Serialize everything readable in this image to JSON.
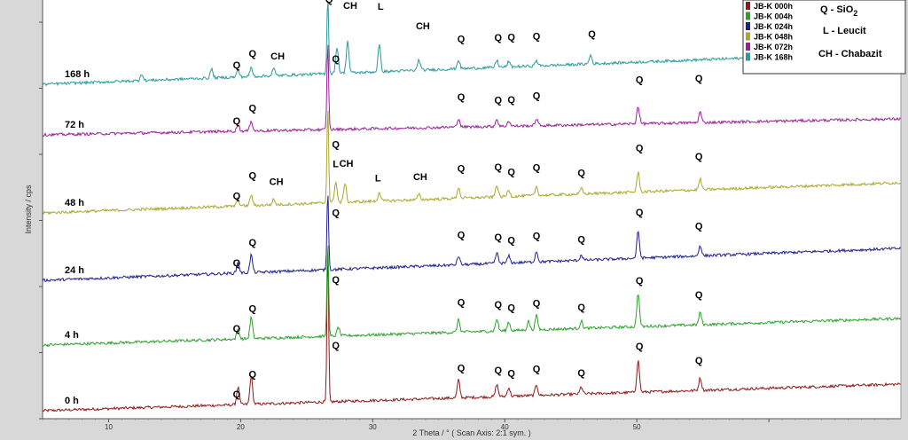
{
  "chart_data": {
    "type": "line",
    "xlabel": "2 Theta / °  ( Scan Axis: 2:1 sym. )",
    "ylabel": "Intensity / cps",
    "xlim": [
      5,
      70
    ],
    "x_ticks": [
      10,
      20,
      30,
      40,
      50,
      60
    ],
    "x_tick_labels": [
      "10",
      "20",
      "30",
      "40",
      "50",
      ""
    ],
    "grid": false,
    "legend_position": "top-right",
    "series": [
      {
        "name": "JB-K 000h",
        "trace_label": "0 h",
        "color": "#8b1a1a",
        "peaks": [
          [
            19.8,
            20
          ],
          [
            20.8,
            32
          ],
          [
            26.6,
            175
          ],
          [
            36.5,
            20
          ],
          [
            39.4,
            14
          ],
          [
            40.3,
            10
          ],
          [
            42.4,
            12
          ],
          [
            45.8,
            8
          ],
          [
            50.1,
            36
          ],
          [
            54.8,
            14
          ]
        ],
        "annotations": [
          {
            "text": "Q",
            "x": 19.7,
            "dy": 8
          },
          {
            "text": "Q",
            "x": 20.9,
            "dy": 30
          },
          {
            "text": "Q",
            "x": 27.2,
            "dy": 60
          },
          {
            "text": "Q",
            "x": 36.7,
            "dy": 30
          },
          {
            "text": "Q",
            "x": 39.5,
            "dy": 26
          },
          {
            "text": "Q",
            "x": 40.5,
            "dy": 22
          },
          {
            "text": "Q",
            "x": 42.4,
            "dy": 26
          },
          {
            "text": "Q",
            "x": 45.8,
            "dy": 20
          },
          {
            "text": "Q",
            "x": 50.2,
            "dy": 48
          },
          {
            "text": "Q",
            "x": 54.7,
            "dy": 30
          }
        ]
      },
      {
        "name": "JB-K 004h",
        "trace_label": "4 h",
        "color": "#2ca02c",
        "peaks": [
          [
            19.8,
            12
          ],
          [
            20.8,
            24
          ],
          [
            26.6,
            110
          ],
          [
            27.4,
            10
          ],
          [
            36.5,
            14
          ],
          [
            39.4,
            14
          ],
          [
            40.3,
            10
          ],
          [
            41.8,
            10
          ],
          [
            42.4,
            16
          ],
          [
            45.8,
            8
          ],
          [
            50.1,
            38
          ],
          [
            54.8,
            14
          ]
        ],
        "annotations": [
          {
            "text": "Q",
            "x": 19.7,
            "dy": 8
          },
          {
            "text": "Q",
            "x": 20.9,
            "dy": 30
          },
          {
            "text": "Q",
            "x": 27.2,
            "dy": 60
          },
          {
            "text": "Q",
            "x": 36.7,
            "dy": 30
          },
          {
            "text": "Q",
            "x": 39.5,
            "dy": 26
          },
          {
            "text": "Q",
            "x": 40.5,
            "dy": 22
          },
          {
            "text": "Q",
            "x": 42.4,
            "dy": 26
          },
          {
            "text": "Q",
            "x": 45.8,
            "dy": 20
          },
          {
            "text": "Q",
            "x": 50.2,
            "dy": 48
          },
          {
            "text": "Q",
            "x": 54.7,
            "dy": 30
          }
        ]
      },
      {
        "name": "JB-K 024h",
        "trace_label": "24 h",
        "color": "#1f1f8c",
        "peaks": [
          [
            19.8,
            12
          ],
          [
            20.8,
            20
          ],
          [
            26.6,
            90
          ],
          [
            36.5,
            10
          ],
          [
            39.4,
            12
          ],
          [
            40.3,
            8
          ],
          [
            42.4,
            12
          ],
          [
            45.8,
            6
          ],
          [
            50.1,
            30
          ],
          [
            54.8,
            12
          ]
        ],
        "annotations": [
          {
            "text": "Q",
            "x": 19.7,
            "dy": 8
          },
          {
            "text": "Q",
            "x": 20.9,
            "dy": 30
          },
          {
            "text": "Q",
            "x": 27.2,
            "dy": 60
          },
          {
            "text": "Q",
            "x": 36.7,
            "dy": 30
          },
          {
            "text": "Q",
            "x": 39.5,
            "dy": 26
          },
          {
            "text": "Q",
            "x": 40.5,
            "dy": 22
          },
          {
            "text": "Q",
            "x": 42.4,
            "dy": 26
          },
          {
            "text": "Q",
            "x": 45.8,
            "dy": 20
          },
          {
            "text": "Q",
            "x": 50.2,
            "dy": 48
          },
          {
            "text": "Q",
            "x": 54.7,
            "dy": 30
          }
        ]
      },
      {
        "name": "JB-K 048h",
        "trace_label": "48 h",
        "color": "#a8a82a",
        "peaks": [
          [
            19.8,
            8
          ],
          [
            20.8,
            12
          ],
          [
            22.5,
            6
          ],
          [
            26.6,
            110
          ],
          [
            27.2,
            24
          ],
          [
            27.9,
            22
          ],
          [
            30.5,
            10
          ],
          [
            33.5,
            6
          ],
          [
            36.5,
            12
          ],
          [
            39.4,
            14
          ],
          [
            40.3,
            8
          ],
          [
            42.4,
            10
          ],
          [
            45.8,
            6
          ],
          [
            50.1,
            22
          ],
          [
            54.8,
            12
          ]
        ],
        "annotations": [
          {
            "text": "Q",
            "x": 19.7,
            "dy": 8
          },
          {
            "text": "Q",
            "x": 20.9,
            "dy": 30
          },
          {
            "text": "CH",
            "x": 22.7,
            "dy": 22
          },
          {
            "text": "Q",
            "x": 27.2,
            "dy": 62
          },
          {
            "text": "L",
            "x": 27.2,
            "dy": 40
          },
          {
            "text": "CH",
            "x": 28.0,
            "dy": 40
          },
          {
            "text": "L",
            "x": 30.4,
            "dy": 22
          },
          {
            "text": "CH",
            "x": 33.6,
            "dy": 22
          },
          {
            "text": "Q",
            "x": 36.7,
            "dy": 30
          },
          {
            "text": "Q",
            "x": 39.5,
            "dy": 30
          },
          {
            "text": "Q",
            "x": 40.5,
            "dy": 24
          },
          {
            "text": "Q",
            "x": 42.4,
            "dy": 28
          },
          {
            "text": "Q",
            "x": 45.8,
            "dy": 20
          },
          {
            "text": "Q",
            "x": 50.2,
            "dy": 46
          },
          {
            "text": "Q",
            "x": 54.7,
            "dy": 34
          }
        ]
      },
      {
        "name": "JB-K 072h",
        "trace_label": "72 h",
        "color": "#9a1f9a",
        "peaks": [
          [
            19.8,
            8
          ],
          [
            20.8,
            12
          ],
          [
            26.6,
            100
          ],
          [
            36.5,
            10
          ],
          [
            39.4,
            8
          ],
          [
            40.3,
            6
          ],
          [
            42.4,
            8
          ],
          [
            50.1,
            20
          ],
          [
            54.8,
            12
          ]
        ],
        "annotations": [
          {
            "text": "Q",
            "x": 19.7,
            "dy": 8
          },
          {
            "text": "Q",
            "x": 20.9,
            "dy": 22
          },
          {
            "text": "Q",
            "x": 27.2,
            "dy": 76
          },
          {
            "text": "Q",
            "x": 36.7,
            "dy": 30
          },
          {
            "text": "Q",
            "x": 39.5,
            "dy": 26
          },
          {
            "text": "Q",
            "x": 40.5,
            "dy": 26
          },
          {
            "text": "Q",
            "x": 42.4,
            "dy": 30
          },
          {
            "text": "Q",
            "x": 50.2,
            "dy": 46
          },
          {
            "text": "Q",
            "x": 54.7,
            "dy": 46
          }
        ]
      },
      {
        "name": "JB-K 168h",
        "trace_label": "168 h",
        "color": "#2a9a9a",
        "peaks": [
          [
            12.5,
            8
          ],
          [
            17.8,
            10
          ],
          [
            19.8,
            8
          ],
          [
            20.8,
            10
          ],
          [
            22.5,
            8
          ],
          [
            26.6,
            90
          ],
          [
            27.3,
            30
          ],
          [
            28.1,
            36
          ],
          [
            30.5,
            30
          ],
          [
            33.5,
            12
          ],
          [
            36.5,
            10
          ],
          [
            39.4,
            8
          ],
          [
            40.3,
            6
          ],
          [
            42.4,
            6
          ],
          [
            46.5,
            10
          ]
        ],
        "annotations": [
          {
            "text": "Q",
            "x": 19.7,
            "dy": 10
          },
          {
            "text": "Q",
            "x": 20.9,
            "dy": 22
          },
          {
            "text": "CH",
            "x": 22.8,
            "dy": 18
          },
          {
            "text": "Q",
            "x": 26.7,
            "dy": 80
          },
          {
            "text": "CH",
            "x": 28.3,
            "dy": 72
          },
          {
            "text": "L",
            "x": 30.6,
            "dy": 70
          },
          {
            "text": "CH",
            "x": 33.8,
            "dy": 46
          },
          {
            "text": "Q",
            "x": 36.7,
            "dy": 30
          },
          {
            "text": "Q",
            "x": 39.5,
            "dy": 30
          },
          {
            "text": "Q",
            "x": 40.5,
            "dy": 30
          },
          {
            "text": "Q",
            "x": 42.4,
            "dy": 30
          },
          {
            "text": "Q",
            "x": 46.6,
            "dy": 30
          }
        ]
      }
    ],
    "phase_key": [
      {
        "symbol": "Q",
        "text": "Q - SiO",
        "subscript": "2"
      },
      {
        "symbol": "L",
        "text": "L - Leucit",
        "subscript": ""
      },
      {
        "symbol": "CH",
        "text": "CH - Chabazit",
        "subscript": ""
      }
    ]
  }
}
